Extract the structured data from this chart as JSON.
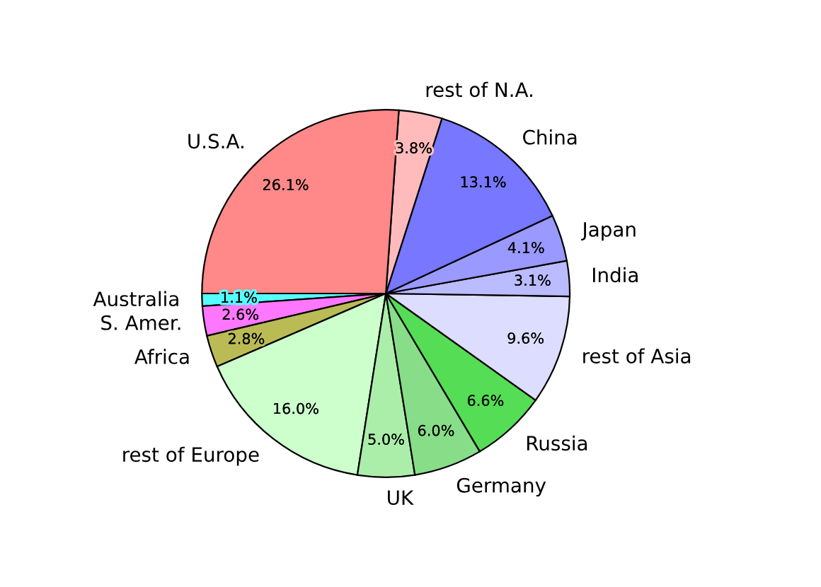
{
  "chart_data": {
    "type": "pie",
    "categories": [
      "Australia",
      "S. Amer.",
      "Africa",
      "rest of Europe",
      "UK",
      "Germany",
      "Russia",
      "rest of Asia",
      "India",
      "Japan",
      "China",
      "rest of N.A.",
      "U.S.A."
    ],
    "values": [
      1.1,
      2.6,
      2.8,
      16.0,
      5.0,
      6.0,
      6.6,
      9.6,
      3.1,
      4.1,
      13.1,
      3.8,
      26.1
    ],
    "value_labels": [
      "1.1%",
      "2.6%",
      "2.8%",
      "16.0%",
      "5.0%",
      "6.0%",
      "6.6%",
      "9.6%",
      "3.1%",
      "4.1%",
      "13.1%",
      "3.8%",
      "26.1%"
    ],
    "colors": [
      "#55ffff",
      "#ff77ff",
      "#bbbb55",
      "#ccffcc",
      "#aaeeaa",
      "#88dd88",
      "#55dd55",
      "#ddddff",
      "#bbbbff",
      "#9999ff",
      "#7777ff",
      "#ffbbbb",
      "#ff8888"
    ]
  }
}
